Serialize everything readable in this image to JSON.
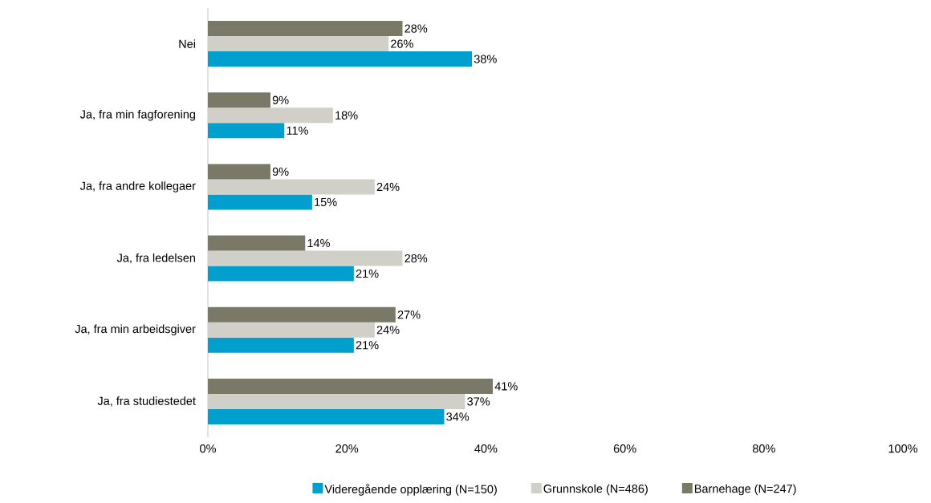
{
  "chart_data": {
    "type": "bar",
    "orientation": "horizontal",
    "categories": [
      "Nei",
      "Ja, fra min fagforening",
      "Ja, fra andre kollegaer",
      "Ja, fra ledelsen",
      "Ja, fra min arbeidsgiver",
      "Ja, fra studiestedet"
    ],
    "series": [
      {
        "name": "Videregående opplæring (N=150)",
        "color": "#009fce",
        "values": [
          38,
          11,
          15,
          21,
          21,
          34
        ],
        "value_labels": [
          "38%",
          "11%",
          "15%",
          "21%",
          "21%",
          "34%"
        ]
      },
      {
        "name": "Grunnskole (N=486)",
        "color": "#d0d0c8",
        "values": [
          26,
          18,
          24,
          28,
          24,
          37
        ],
        "value_labels": [
          "26%",
          "18%",
          "24%",
          "28%",
          "24%",
          "37%"
        ]
      },
      {
        "name": "Barnehage (N=247)",
        "color": "#7a7968",
        "values": [
          28,
          9,
          9,
          14,
          27,
          41
        ],
        "value_labels": [
          "28%",
          "9%",
          "9%",
          "14%",
          "27%",
          "41%"
        ]
      }
    ],
    "xlim": [
      0,
      100
    ],
    "xticks": [
      {
        "value": 0,
        "label": "0%"
      },
      {
        "value": 20,
        "label": "20%"
      },
      {
        "value": 40,
        "label": "40%"
      },
      {
        "value": 60,
        "label": "60%"
      },
      {
        "value": 80,
        "label": "80%"
      },
      {
        "value": 100,
        "label": "100%"
      }
    ],
    "legend": "bottom"
  }
}
